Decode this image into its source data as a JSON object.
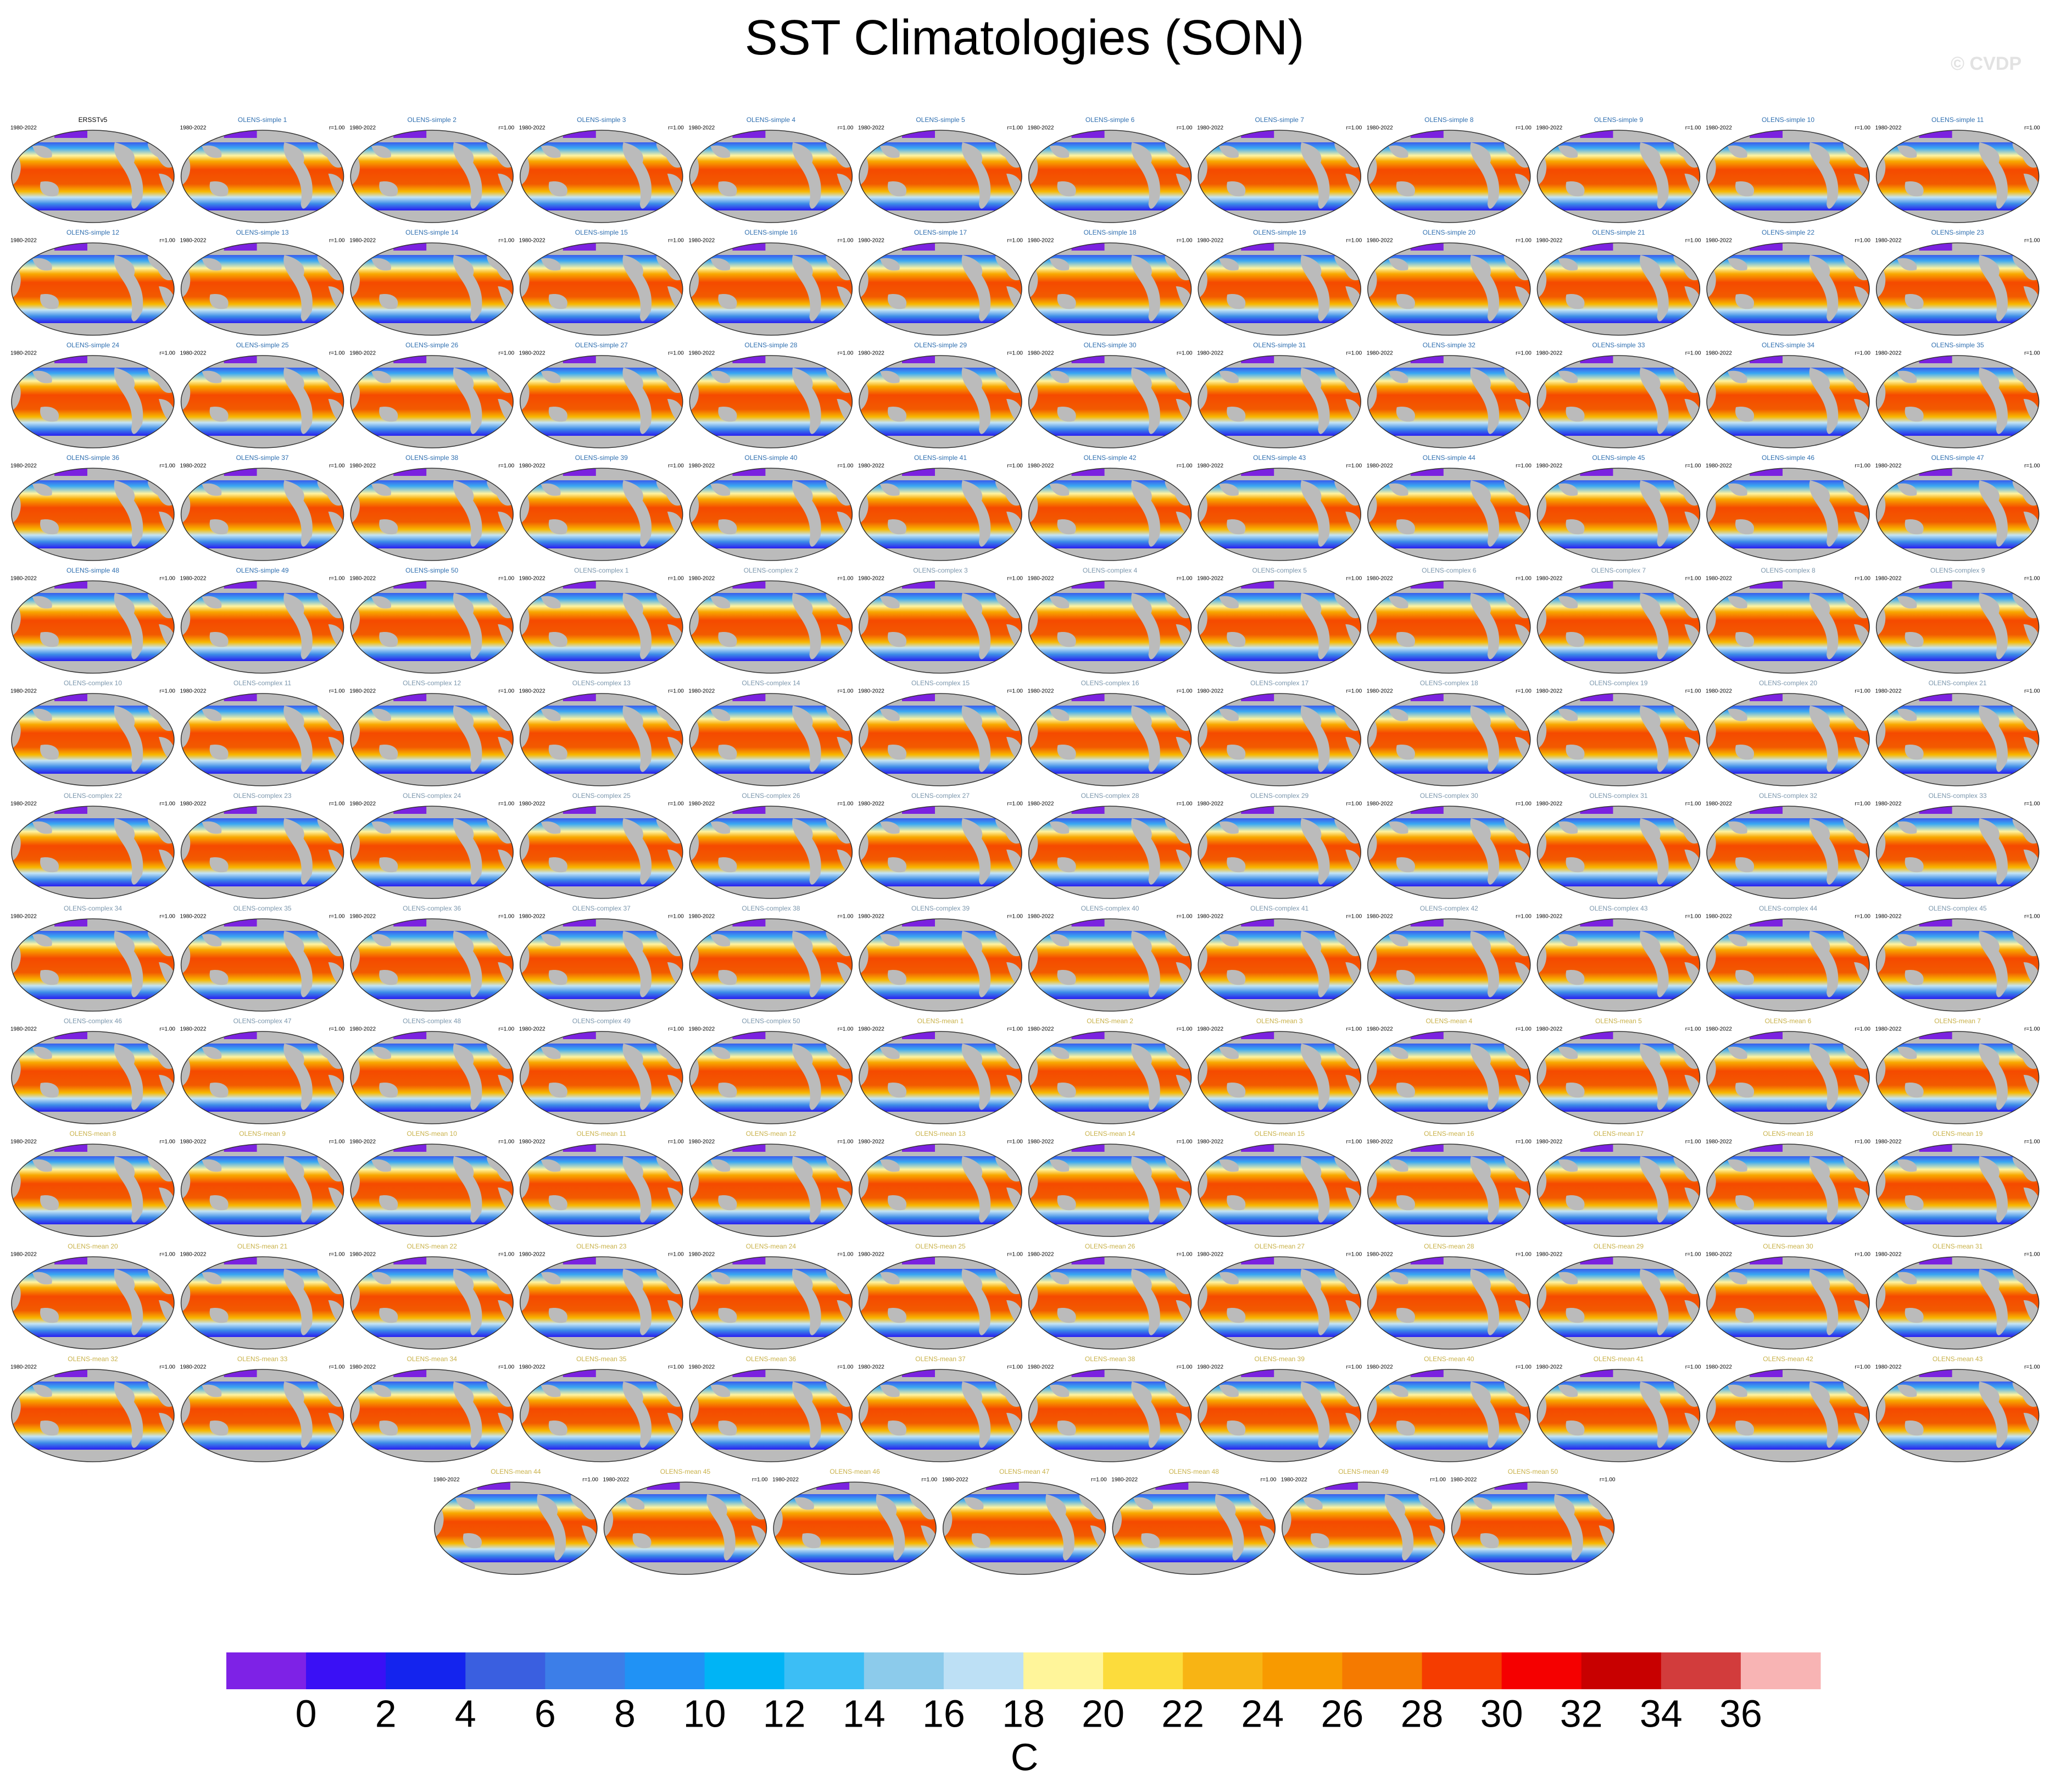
{
  "title": "SST Climatologies (SON)",
  "watermark": "© CVDP",
  "reference": {
    "title": "ERSSTv5",
    "period": "1980-2022",
    "color": "#000000"
  },
  "ensembles": [
    {
      "color": "#2f6fb0",
      "period": "1980-2022",
      "r": "r=1.00",
      "members": [
        "OLENS-simple 1",
        "OLENS-simple 2",
        "OLENS-simple 3",
        "OLENS-simple 4",
        "OLENS-simple 5",
        "OLENS-simple 6",
        "OLENS-simple 7",
        "OLENS-simple 8",
        "OLENS-simple 9",
        "OLENS-simple 10",
        "OLENS-simple 11",
        "OLENS-simple 12",
        "OLENS-simple 13",
        "OLENS-simple 14",
        "OLENS-simple 15",
        "OLENS-simple 16",
        "OLENS-simple 17",
        "OLENS-simple 18",
        "OLENS-simple 19",
        "OLENS-simple 20",
        "OLENS-simple 21",
        "OLENS-simple 22",
        "OLENS-simple 23",
        "OLENS-simple 24",
        "OLENS-simple 25",
        "OLENS-simple 26",
        "OLENS-simple 27",
        "OLENS-simple 28",
        "OLENS-simple 29",
        "OLENS-simple 30",
        "OLENS-simple 31",
        "OLENS-simple 32",
        "OLENS-simple 33",
        "OLENS-simple 34",
        "OLENS-simple 35",
        "OLENS-simple 36",
        "OLENS-simple 37",
        "OLENS-simple 38",
        "OLENS-simple 39",
        "OLENS-simple 40",
        "OLENS-simple 41",
        "OLENS-simple 42",
        "OLENS-simple 43",
        "OLENS-simple 44",
        "OLENS-simple 45",
        "OLENS-simple 46",
        "OLENS-simple 47",
        "OLENS-simple 48",
        "OLENS-simple 49",
        "OLENS-simple 50"
      ]
    },
    {
      "color": "#7c97ad",
      "period": "1980-2022",
      "r": "r=1.00",
      "members": [
        "OLENS-complex 1",
        "OLENS-complex 2",
        "OLENS-complex 3",
        "OLENS-complex 4",
        "OLENS-complex 5",
        "OLENS-complex 6",
        "OLENS-complex 7",
        "OLENS-complex 8",
        "OLENS-complex 9",
        "OLENS-complex 10",
        "OLENS-complex 11",
        "OLENS-complex 12",
        "OLENS-complex 13",
        "OLENS-complex 14",
        "OLENS-complex 15",
        "OLENS-complex 16",
        "OLENS-complex 17",
        "OLENS-complex 18",
        "OLENS-complex 19",
        "OLENS-complex 20",
        "OLENS-complex 21",
        "OLENS-complex 22",
        "OLENS-complex 23",
        "OLENS-complex 24",
        "OLENS-complex 25",
        "OLENS-complex 26",
        "OLENS-complex 27",
        "OLENS-complex 28",
        "OLENS-complex 29",
        "OLENS-complex 30",
        "OLENS-complex 31",
        "OLENS-complex 32",
        "OLENS-complex 33",
        "OLENS-complex 34",
        "OLENS-complex 35",
        "OLENS-complex 36",
        "OLENS-complex 37",
        "OLENS-complex 38",
        "OLENS-complex 39",
        "OLENS-complex 40",
        "OLENS-complex 41",
        "OLENS-complex 42",
        "OLENS-complex 43",
        "OLENS-complex 44",
        "OLENS-complex 45",
        "OLENS-complex 46",
        "OLENS-complex 47",
        "OLENS-complex 48",
        "OLENS-complex 49",
        "OLENS-complex 50"
      ]
    },
    {
      "color": "#c9b24a",
      "period": "1980-2022",
      "r": "r=1.00",
      "members": [
        "OLENS-mean 1",
        "OLENS-mean 2",
        "OLENS-mean 3",
        "OLENS-mean 4",
        "OLENS-mean 5",
        "OLENS-mean 6",
        "OLENS-mean 7",
        "OLENS-mean 8",
        "OLENS-mean 9",
        "OLENS-mean 10",
        "OLENS-mean 11",
        "OLENS-mean 12",
        "OLENS-mean 13",
        "OLENS-mean 14",
        "OLENS-mean 15",
        "OLENS-mean 16",
        "OLENS-mean 17",
        "OLENS-mean 18",
        "OLENS-mean 19",
        "OLENS-mean 20",
        "OLENS-mean 21",
        "OLENS-mean 22",
        "OLENS-mean 23",
        "OLENS-mean 24",
        "OLENS-mean 25",
        "OLENS-mean 26",
        "OLENS-mean 27",
        "OLENS-mean 28",
        "OLENS-mean 29",
        "OLENS-mean 30",
        "OLENS-mean 31",
        "OLENS-mean 32",
        "OLENS-mean 33",
        "OLENS-mean 34",
        "OLENS-mean 35",
        "OLENS-mean 36",
        "OLENS-mean 37",
        "OLENS-mean 38",
        "OLENS-mean 39",
        "OLENS-mean 40",
        "OLENS-mean 41",
        "OLENS-mean 42",
        "OLENS-mean 43",
        "OLENS-mean 44",
        "OLENS-mean 45",
        "OLENS-mean 46",
        "OLENS-mean 47",
        "OLENS-mean 48",
        "OLENS-mean 49",
        "OLENS-mean 50"
      ]
    }
  ],
  "colorbar": {
    "unit": "C",
    "colors": [
      "#7e22e6",
      "#3a10f5",
      "#1424ee",
      "#3a5fe0",
      "#3c7ee8",
      "#2092f5",
      "#00b4f5",
      "#3cbef5",
      "#8ccbeb",
      "#bde0f5",
      "#fff59a",
      "#fcdc3c",
      "#f8b414",
      "#f89a00",
      "#f57a00",
      "#f53c00",
      "#f50000",
      "#c80000",
      "#d23c3c",
      "#f8b4b4"
    ],
    "ticks": [
      0,
      2,
      4,
      6,
      8,
      10,
      12,
      14,
      16,
      18,
      20,
      22,
      24,
      26,
      28,
      30,
      32,
      34,
      36
    ]
  }
}
